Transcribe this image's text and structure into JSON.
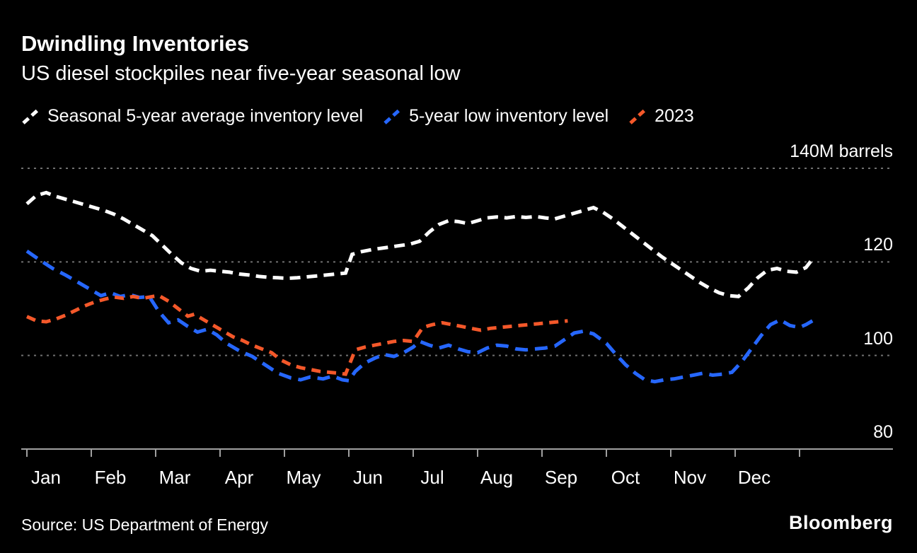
{
  "header": {
    "title": "Dwindling Inventories",
    "subtitle": "US diesel stockpiles near five-year seasonal low"
  },
  "legend": [
    {
      "label": "Seasonal 5-year average inventory level",
      "color": "#ffffff"
    },
    {
      "label": "5-year low inventory level",
      "color": "#2667ff"
    },
    {
      "label": "2023",
      "color": "#f4582a"
    }
  ],
  "axes": {
    "y_labels": [
      {
        "text": "140M barrels",
        "value": 140
      },
      {
        "text": "120",
        "value": 120
      },
      {
        "text": "100",
        "value": 100
      },
      {
        "text": "80",
        "value": 80
      }
    ],
    "months": [
      "Jan",
      "Feb",
      "Mar",
      "Apr",
      "May",
      "Jun",
      "Jul",
      "Aug",
      "Sep",
      "Oct",
      "Nov",
      "Dec"
    ]
  },
  "footer": {
    "source": "Source: US Department of Energy",
    "brand": "Bloomberg"
  },
  "colors": {
    "background": "#000000",
    "grid": "#707070",
    "axis": "#a0a0a0",
    "text": "#ffffff"
  },
  "chart_data": {
    "type": "line",
    "title": "Dwindling Inventories",
    "subtitle": "US diesel stockpiles near five-year seasonal low",
    "ylabel": "M barrels",
    "ylim": [
      80,
      145
    ],
    "yticks": [
      80,
      100,
      120,
      140
    ],
    "grid": "horizontal dotted, x-axis drawn at 80",
    "legend_position": "top",
    "x_unit": "months, 0 = start of Jan, fractional within month",
    "series": [
      {
        "name": "Seasonal 5-year average inventory level",
        "color": "#ffffff",
        "dash": [
          15,
          9
        ],
        "points": [
          [
            0,
            132.4
          ],
          [
            0.15,
            134.2
          ],
          [
            0.3,
            134.8
          ],
          [
            0.45,
            134
          ],
          [
            0.6,
            133.4
          ],
          [
            0.75,
            132.8
          ],
          [
            0.9,
            132.2
          ],
          [
            1.05,
            131.6
          ],
          [
            1.2,
            131
          ],
          [
            1.35,
            130.2
          ],
          [
            1.5,
            129.2
          ],
          [
            1.65,
            128
          ],
          [
            1.8,
            126.8
          ],
          [
            1.95,
            125.6
          ],
          [
            2.1,
            123.6
          ],
          [
            2.25,
            121.6
          ],
          [
            2.4,
            119.8
          ],
          [
            2.55,
            118.6
          ],
          [
            2.7,
            118
          ],
          [
            2.85,
            118.2
          ],
          [
            3,
            118
          ],
          [
            3.15,
            117.8
          ],
          [
            3.3,
            117.4
          ],
          [
            3.45,
            117.2
          ],
          [
            3.6,
            116.9
          ],
          [
            3.75,
            116.7
          ],
          [
            3.9,
            116.6
          ],
          [
            4.05,
            116.5
          ],
          [
            4.2,
            116.6
          ],
          [
            4.35,
            116.8
          ],
          [
            4.5,
            117
          ],
          [
            4.65,
            117.2
          ],
          [
            4.8,
            117.4
          ],
          [
            4.95,
            117.6
          ],
          [
            5.05,
            121.6
          ],
          [
            5.2,
            122.2
          ],
          [
            5.35,
            122.6
          ],
          [
            5.5,
            122.9
          ],
          [
            5.65,
            123.2
          ],
          [
            5.8,
            123.5
          ],
          [
            5.95,
            123.8
          ],
          [
            6.1,
            124.4
          ],
          [
            6.25,
            126.4
          ],
          [
            6.4,
            128
          ],
          [
            6.55,
            128.8
          ],
          [
            6.7,
            128.6
          ],
          [
            6.85,
            128.2
          ],
          [
            7,
            128.8
          ],
          [
            7.15,
            129.4
          ],
          [
            7.3,
            129.6
          ],
          [
            7.45,
            129.4
          ],
          [
            7.6,
            129.7
          ],
          [
            7.75,
            129.5
          ],
          [
            7.9,
            129.7
          ],
          [
            8.05,
            129.4
          ],
          [
            8.2,
            129.2
          ],
          [
            8.35,
            129.8
          ],
          [
            8.5,
            130.4
          ],
          [
            8.65,
            131
          ],
          [
            8.8,
            131.6
          ],
          [
            8.95,
            130.6
          ],
          [
            9.1,
            129.2
          ],
          [
            9.25,
            127.6
          ],
          [
            9.4,
            126
          ],
          [
            9.55,
            124.4
          ],
          [
            9.7,
            122.8
          ],
          [
            9.85,
            121.2
          ],
          [
            10,
            119.8
          ],
          [
            10.15,
            118.4
          ],
          [
            10.3,
            117
          ],
          [
            10.45,
            115.6
          ],
          [
            10.6,
            114.4
          ],
          [
            10.75,
            113.4
          ],
          [
            10.9,
            112.8
          ],
          [
            11.05,
            112.6
          ],
          [
            11.2,
            114.4
          ],
          [
            11.35,
            116.6
          ],
          [
            11.5,
            118.2
          ],
          [
            11.65,
            118.6
          ],
          [
            11.8,
            118
          ],
          [
            11.95,
            117.8
          ],
          [
            12.1,
            118.8
          ],
          [
            12.2,
            120.6
          ]
        ]
      },
      {
        "name": "5-year low inventory level",
        "color": "#2667ff",
        "dash": [
          18,
          10
        ],
        "points": [
          [
            0,
            122.3
          ],
          [
            0.2,
            120.4
          ],
          [
            0.4,
            118.6
          ],
          [
            0.6,
            117.2
          ],
          [
            0.8,
            115.6
          ],
          [
            1,
            114
          ],
          [
            1.15,
            112.8
          ],
          [
            1.3,
            113.4
          ],
          [
            1.45,
            112.6
          ],
          [
            1.6,
            113
          ],
          [
            1.75,
            112.4
          ],
          [
            1.9,
            112.6
          ],
          [
            2.05,
            109.4
          ],
          [
            2.2,
            107
          ],
          [
            2.35,
            107.6
          ],
          [
            2.5,
            106.2
          ],
          [
            2.65,
            105
          ],
          [
            2.8,
            105.6
          ],
          [
            2.95,
            104.4
          ],
          [
            3.1,
            102.6
          ],
          [
            3.3,
            101
          ],
          [
            3.5,
            99.8
          ],
          [
            3.7,
            98
          ],
          [
            3.9,
            96.2
          ],
          [
            4.1,
            95.2
          ],
          [
            4.25,
            94.8
          ],
          [
            4.4,
            95.4
          ],
          [
            4.6,
            95
          ],
          [
            4.75,
            95.6
          ],
          [
            4.9,
            94.8
          ],
          [
            5,
            94.6
          ],
          [
            5.1,
            96.6
          ],
          [
            5.25,
            98.4
          ],
          [
            5.4,
            99.4
          ],
          [
            5.55,
            100.2
          ],
          [
            5.7,
            99.8
          ],
          [
            5.85,
            100.6
          ],
          [
            6,
            101.8
          ],
          [
            6.1,
            103
          ],
          [
            6.25,
            102.2
          ],
          [
            6.4,
            101.6
          ],
          [
            6.55,
            102.2
          ],
          [
            6.7,
            101.4
          ],
          [
            6.85,
            100.8
          ],
          [
            7,
            100.6
          ],
          [
            7.15,
            101.6
          ],
          [
            7.3,
            102.2
          ],
          [
            7.45,
            102
          ],
          [
            7.6,
            101.4
          ],
          [
            7.75,
            101.2
          ],
          [
            7.9,
            101.4
          ],
          [
            8.05,
            101.6
          ],
          [
            8.2,
            102
          ],
          [
            8.35,
            103.4
          ],
          [
            8.5,
            104.8
          ],
          [
            8.65,
            105.2
          ],
          [
            8.8,
            104.6
          ],
          [
            9,
            102.6
          ],
          [
            9.15,
            100.2
          ],
          [
            9.3,
            98
          ],
          [
            9.45,
            96.2
          ],
          [
            9.6,
            94.8
          ],
          [
            9.75,
            94.4
          ],
          [
            9.9,
            94.8
          ],
          [
            10.05,
            95
          ],
          [
            10.2,
            95.4
          ],
          [
            10.35,
            95.8
          ],
          [
            10.5,
            96.2
          ],
          [
            10.65,
            95.8
          ],
          [
            10.8,
            96
          ],
          [
            10.95,
            96.4
          ],
          [
            11.1,
            98.6
          ],
          [
            11.25,
            101.4
          ],
          [
            11.4,
            104.2
          ],
          [
            11.55,
            106.6
          ],
          [
            11.7,
            107.6
          ],
          [
            11.85,
            106.4
          ],
          [
            12,
            106
          ],
          [
            12.1,
            106.6
          ],
          [
            12.2,
            107.4
          ]
        ]
      },
      {
        "name": "2023",
        "color": "#f4582a",
        "dash": [
          13,
          9
        ],
        "points": [
          [
            0,
            108.3
          ],
          [
            0.15,
            107.4
          ],
          [
            0.3,
            107.2
          ],
          [
            0.45,
            107.8
          ],
          [
            0.6,
            108.6
          ],
          [
            0.75,
            109.6
          ],
          [
            0.9,
            110.6
          ],
          [
            1.05,
            111.4
          ],
          [
            1.2,
            112
          ],
          [
            1.35,
            112.5
          ],
          [
            1.5,
            112.2
          ],
          [
            1.65,
            112.6
          ],
          [
            1.8,
            112.2
          ],
          [
            1.95,
            112.6
          ],
          [
            2.05,
            112.8
          ],
          [
            2.2,
            111.6
          ],
          [
            2.35,
            110
          ],
          [
            2.5,
            108.4
          ],
          [
            2.6,
            108.8
          ],
          [
            2.75,
            107.6
          ],
          [
            2.9,
            106.4
          ],
          [
            3.05,
            105.2
          ],
          [
            3.2,
            104
          ],
          [
            3.35,
            103.2
          ],
          [
            3.5,
            102.2
          ],
          [
            3.65,
            101.4
          ],
          [
            3.8,
            100.6
          ],
          [
            3.95,
            99
          ],
          [
            4.1,
            98
          ],
          [
            4.25,
            97.4
          ],
          [
            4.4,
            97
          ],
          [
            4.55,
            96.6
          ],
          [
            4.7,
            96.4
          ],
          [
            4.85,
            96.2
          ],
          [
            4.95,
            96
          ],
          [
            5.1,
            101.2
          ],
          [
            5.25,
            101.8
          ],
          [
            5.4,
            102.2
          ],
          [
            5.55,
            102.6
          ],
          [
            5.7,
            103
          ],
          [
            5.85,
            103.2
          ],
          [
            6,
            103
          ],
          [
            6.15,
            106
          ],
          [
            6.3,
            106.6
          ],
          [
            6.45,
            107
          ],
          [
            6.6,
            106.6
          ],
          [
            6.75,
            106.2
          ],
          [
            6.9,
            105.8
          ],
          [
            7.05,
            105.4
          ],
          [
            7.2,
            105.8
          ],
          [
            7.35,
            106
          ],
          [
            7.5,
            106.2
          ],
          [
            7.65,
            106.4
          ],
          [
            7.8,
            106.6
          ],
          [
            7.95,
            106.8
          ],
          [
            8.1,
            107
          ],
          [
            8.25,
            107.2
          ],
          [
            8.4,
            107.4
          ]
        ]
      }
    ]
  }
}
